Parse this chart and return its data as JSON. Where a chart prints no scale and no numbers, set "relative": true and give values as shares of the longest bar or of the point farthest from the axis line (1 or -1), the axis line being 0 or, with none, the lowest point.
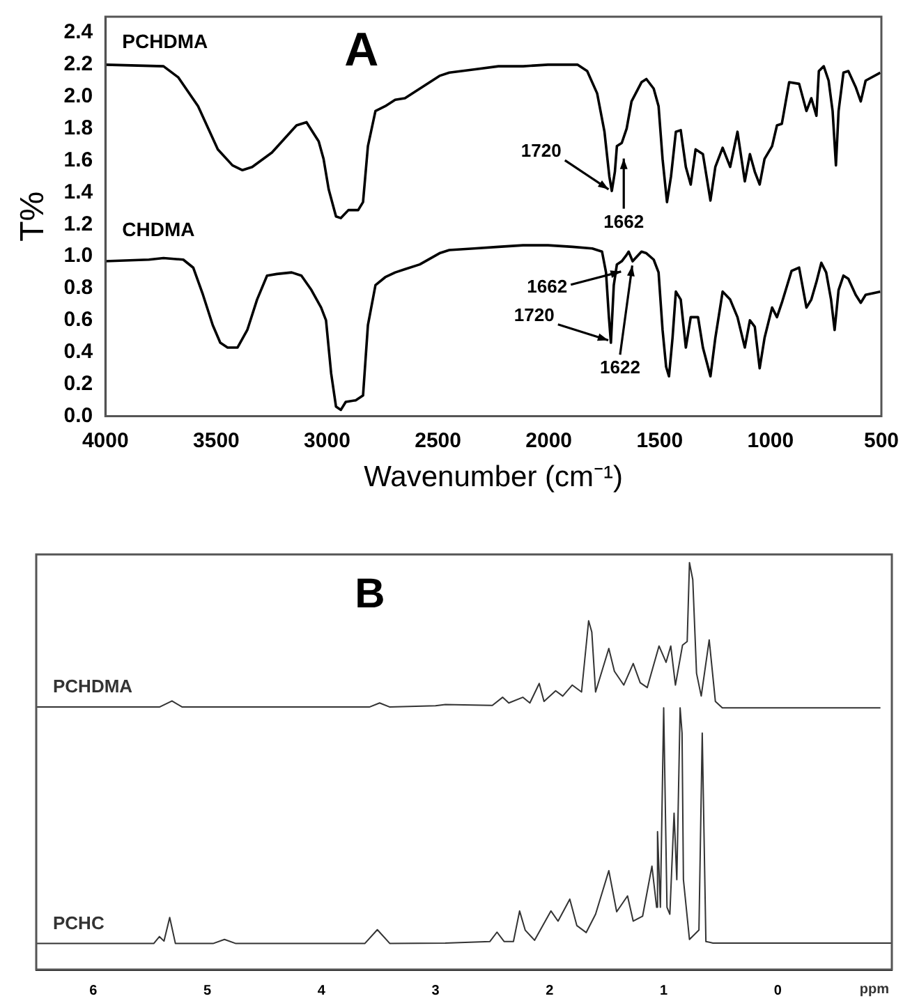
{
  "chart_data": [
    {
      "type": "line",
      "title": "A",
      "xlabel": "Wavenumber (cm⁻¹)",
      "ylabel": "T%",
      "xlim": [
        4000,
        500
      ],
      "xticks": [
        4000,
        3500,
        3000,
        2500,
        2000,
        1500,
        1000,
        500
      ],
      "ylim": [
        0,
        2.5
      ],
      "yticks": [
        {
          "value": 0,
          "label": "0.0"
        },
        {
          "value": 0.2,
          "label": "0.2"
        },
        {
          "value": 0.4,
          "label": "0.4"
        },
        {
          "value": 0.6,
          "label": "0.6"
        },
        {
          "value": 0.8,
          "label": "0.8"
        },
        {
          "value": 1,
          "label": "1.0"
        },
        {
          "value": 1.2,
          "label": "1.2"
        },
        {
          "value": 1.4,
          "label": "1.4"
        },
        {
          "value": 1.6,
          "label": "1.6"
        },
        {
          "value": 1.8,
          "label": "1.8"
        },
        {
          "value": 2,
          "label": "2.0"
        },
        {
          "value": 2.2,
          "label": "2.2"
        },
        {
          "value": 2.4,
          "label": "2.4"
        }
      ],
      "grid": false,
      "marker": "none",
      "line_style": "solid",
      "series": [
        {
          "name": "PCHDMA",
          "color": "#000000",
          "x": [
            4000,
            3738,
            3671,
            3582,
            3493,
            3427,
            3382,
            3338,
            3249,
            3138,
            3093,
            3038,
            3016,
            2993,
            2960,
            2938,
            2904,
            2860,
            2838,
            2816,
            2782,
            2738,
            2693,
            2649,
            2582,
            2493,
            2449,
            2338,
            2227,
            2116,
            2004,
            1871,
            1827,
            1782,
            1749,
            1727,
            1716,
            1702,
            1693,
            1671,
            1649,
            1627,
            1582,
            1560,
            1527,
            1505,
            1487,
            1467,
            1449,
            1427,
            1405,
            1382,
            1360,
            1338,
            1305,
            1271,
            1249,
            1216,
            1182,
            1149,
            1116,
            1093,
            1071,
            1049,
            1027,
            993,
            971,
            949,
            916,
            871,
            838,
            816,
            793,
            782,
            760,
            738,
            720,
            705,
            693,
            671,
            649,
            616,
            593,
            571,
            505
          ],
          "values": [
            2.2,
            2.19,
            2.12,
            1.94,
            1.67,
            1.57,
            1.54,
            1.56,
            1.65,
            1.82,
            1.84,
            1.72,
            1.61,
            1.42,
            1.25,
            1.24,
            1.29,
            1.29,
            1.34,
            1.69,
            1.91,
            1.94,
            1.98,
            1.99,
            2.05,
            2.13,
            2.15,
            2.17,
            2.19,
            2.19,
            2.2,
            2.2,
            2.16,
            2.02,
            1.78,
            1.5,
            1.41,
            1.53,
            1.69,
            1.71,
            1.8,
            1.97,
            2.09,
            2.11,
            2.05,
            1.94,
            1.61,
            1.34,
            1.5,
            1.78,
            1.79,
            1.56,
            1.45,
            1.67,
            1.64,
            1.35,
            1.56,
            1.68,
            1.56,
            1.78,
            1.47,
            1.64,
            1.53,
            1.45,
            1.61,
            1.69,
            1.82,
            1.83,
            2.09,
            2.08,
            1.91,
            1.99,
            1.88,
            2.16,
            2.19,
            2.1,
            1.91,
            1.57,
            1.91,
            2.15,
            2.16,
            2.06,
            1.97,
            2.1,
            2.15
          ]
        },
        {
          "name": "CHDMA",
          "color": "#000000",
          "x": [
            4000,
            3804,
            3738,
            3649,
            3604,
            3560,
            3516,
            3482,
            3449,
            3404,
            3360,
            3316,
            3271,
            3227,
            3160,
            3116,
            3071,
            3027,
            3005,
            2982,
            2960,
            2938,
            2916,
            2871,
            2838,
            2816,
            2782,
            2738,
            2693,
            2649,
            2582,
            2493,
            2449,
            2338,
            2227,
            2116,
            2004,
            1893,
            1804,
            1760,
            1742,
            1729,
            1720,
            1707,
            1693,
            1671,
            1649,
            1640,
            1622,
            1582,
            1560,
            1527,
            1505,
            1487,
            1471,
            1458,
            1442,
            1427,
            1405,
            1382,
            1360,
            1327,
            1305,
            1271,
            1249,
            1216,
            1182,
            1149,
            1116,
            1093,
            1071,
            1049,
            1027,
            993,
            971,
            949,
            905,
            871,
            838,
            816,
            793,
            771,
            749,
            727,
            711,
            693,
            671,
            649,
            616,
            593,
            571,
            505
          ],
          "values": [
            0.97,
            0.98,
            0.99,
            0.98,
            0.93,
            0.76,
            0.57,
            0.46,
            0.43,
            0.43,
            0.54,
            0.73,
            0.88,
            0.89,
            0.9,
            0.88,
            0.79,
            0.68,
            0.6,
            0.27,
            0.06,
            0.04,
            0.09,
            0.1,
            0.13,
            0.57,
            0.82,
            0.87,
            0.9,
            0.92,
            0.95,
            1.02,
            1.04,
            1.05,
            1.06,
            1.07,
            1.07,
            1.06,
            1.05,
            1.03,
            0.9,
            0.62,
            0.46,
            0.82,
            0.95,
            0.97,
            1.01,
            1.03,
            0.97,
            1.03,
            1.02,
            0.98,
            0.9,
            0.54,
            0.31,
            0.25,
            0.49,
            0.78,
            0.73,
            0.43,
            0.62,
            0.62,
            0.43,
            0.25,
            0.49,
            0.78,
            0.73,
            0.62,
            0.43,
            0.6,
            0.56,
            0.3,
            0.49,
            0.68,
            0.62,
            0.71,
            0.91,
            0.93,
            0.68,
            0.73,
            0.84,
            0.96,
            0.9,
            0.73,
            0.54,
            0.79,
            0.88,
            0.86,
            0.76,
            0.71,
            0.76,
            0.78
          ]
        }
      ],
      "annotations": [
        {
          "text": "1720",
          "x": 1720,
          "y": 1.41
        },
        {
          "text": "1662",
          "x": 1662,
          "y": 1.63
        },
        {
          "text": "1662",
          "x": 1662,
          "y": 0.91
        },
        {
          "text": "1720",
          "x": 1720,
          "y": 0.47
        },
        {
          "text": "1622",
          "x": 1622,
          "y": 0.96
        }
      ]
    },
    {
      "type": "line",
      "title": "B",
      "xlabel": "ppm",
      "xlim": [
        6.5,
        -1.0
      ],
      "xticks": [
        6,
        5,
        4,
        3,
        2,
        1,
        0
      ],
      "relative": true,
      "tick_labels": "x",
      "grid": false,
      "marker": "none",
      "line_style": "solid",
      "series": [
        {
          "name": "PCHDMA",
          "color": "#333333",
          "x": [
            6.5,
            5.42,
            5.31,
            5.22,
            3.58,
            3.49,
            3.4,
            3.0,
            2.914,
            2.502,
            2.412,
            2.358,
            2.235,
            2.173,
            2.091,
            2.049,
            1.947,
            1.885,
            1.802,
            1.72,
            1.658,
            1.63,
            1.597,
            1.481,
            1.432,
            1.35,
            1.267,
            1.206,
            1.144,
            1.041,
            0.979,
            0.938,
            0.897,
            0.835,
            0.794,
            0.774,
            0.745,
            0.712,
            0.671,
            0.601,
            0.547,
            0.486,
            -0.9
          ],
          "values": [
            0.645,
            0.645,
            0.66,
            0.645,
            0.645,
            0.655,
            0.645,
            0.648,
            0.651,
            0.649,
            0.669,
            0.655,
            0.669,
            0.655,
            0.703,
            0.659,
            0.685,
            0.672,
            0.699,
            0.682,
            0.857,
            0.829,
            0.682,
            0.789,
            0.733,
            0.699,
            0.752,
            0.705,
            0.693,
            0.795,
            0.755,
            0.795,
            0.699,
            0.797,
            0.806,
            1.0,
            0.958,
            0.728,
            0.672,
            0.81,
            0.659,
            0.643,
            0.643
          ]
        },
        {
          "name": "PCHC",
          "color": "#333333",
          "x": [
            6.5,
            5.47,
            5.42,
            5.38,
            5.33,
            5.28,
            4.95,
            4.85,
            4.75,
            3.62,
            3.51,
            3.4,
            2.914,
            2.523,
            2.461,
            2.399,
            2.317,
            2.263,
            2.214,
            2.132,
            1.988,
            1.926,
            1.823,
            1.761,
            1.679,
            1.597,
            1.481,
            1.412,
            1.317,
            1.267,
            1.185,
            1.103,
            1.062,
            1.054,
            1.029,
            1.0,
            0.971,
            0.946,
            0.909,
            0.885,
            0.856,
            0.839,
            0.827,
            0.774,
            0.691,
            0.662,
            0.63,
            0.568,
            -1.0
          ],
          "values": [
            0.064,
            0.064,
            0.081,
            0.07,
            0.128,
            0.064,
            0.064,
            0.074,
            0.064,
            0.064,
            0.098,
            0.064,
            0.065,
            0.069,
            0.092,
            0.069,
            0.069,
            0.144,
            0.097,
            0.072,
            0.144,
            0.119,
            0.173,
            0.108,
            0.091,
            0.136,
            0.243,
            0.142,
            0.181,
            0.119,
            0.131,
            0.254,
            0.153,
            0.339,
            0.153,
            0.643,
            0.153,
            0.136,
            0.384,
            0.221,
            0.643,
            0.581,
            0.221,
            0.074,
            0.097,
            0.581,
            0.069,
            0.065,
            0.065
          ]
        }
      ]
    }
  ]
}
